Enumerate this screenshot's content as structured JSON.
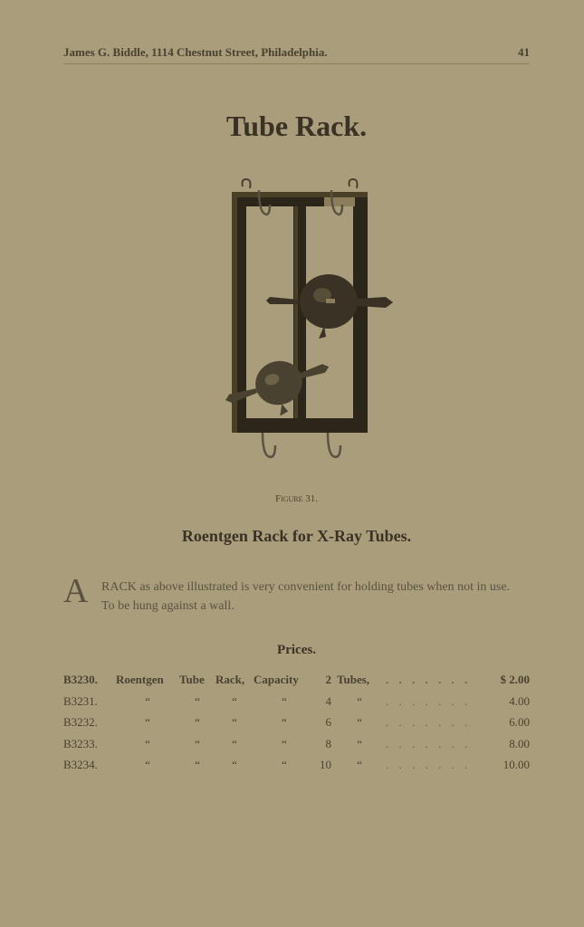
{
  "header": {
    "text": "James G. Biddle, 1114 Chestnut Street, Philadelphia.",
    "pageNumber": "41"
  },
  "title": "Tube Rack.",
  "figure": {
    "caption": "Figure 31.",
    "colors": {
      "wood": "#2b251a",
      "wood_light": "#4a4028",
      "metal": "#6a6248",
      "glass": "#5a5038",
      "glass_hl": "#8a7e5c"
    }
  },
  "subtitle": "Roentgen Rack for X-Ray Tubes.",
  "description": {
    "dropcap": "A",
    "text": "RACK as above illustrated is very convenient for holding tubes when not in use. To be hung against a wall."
  },
  "prices": {
    "heading": "Prices.",
    "labels": [
      "Roentgen",
      "Tube",
      "Rack,",
      "Capacity",
      "Tubes,"
    ],
    "ditto": "“",
    "leader": ". . . . . . . .",
    "rows": [
      {
        "no": "B3230.",
        "qty": "2",
        "price": "$ 2.00",
        "first": true
      },
      {
        "no": "B3231.",
        "qty": "4",
        "price": "4.00",
        "first": false
      },
      {
        "no": "B3232.",
        "qty": "6",
        "price": "6.00",
        "first": false
      },
      {
        "no": "B3233.",
        "qty": "8",
        "price": "8.00",
        "first": false
      },
      {
        "no": "B3234.",
        "qty": "10",
        "price": "10.00",
        "first": false
      }
    ]
  }
}
